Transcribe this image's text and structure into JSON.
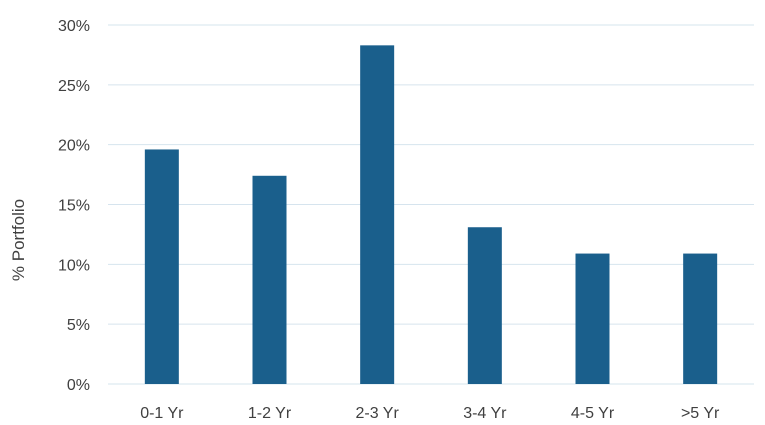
{
  "chart_data": {
    "type": "bar",
    "title": "",
    "xlabel": "",
    "ylabel": "% Portfolio",
    "categories": [
      "0-1 Yr",
      "1-2 Yr",
      "2-3 Yr",
      "3-4 Yr",
      "4-5 Yr",
      ">5 Yr"
    ],
    "series": [
      {
        "values": [
          19.6,
          17.4,
          28.3,
          13.1,
          10.9,
          10.9
        ]
      }
    ],
    "ylim": [
      0,
      30
    ],
    "yticks": [
      0,
      5,
      10,
      15,
      20,
      25,
      30
    ],
    "ytick_labels": [
      "0%",
      "5%",
      "10%",
      "15%",
      "20%",
      "25%",
      "30%"
    ],
    "grid": true,
    "legend": "none",
    "bar_color": "#1a5f8c",
    "grid_color": "#d6e4ee"
  }
}
